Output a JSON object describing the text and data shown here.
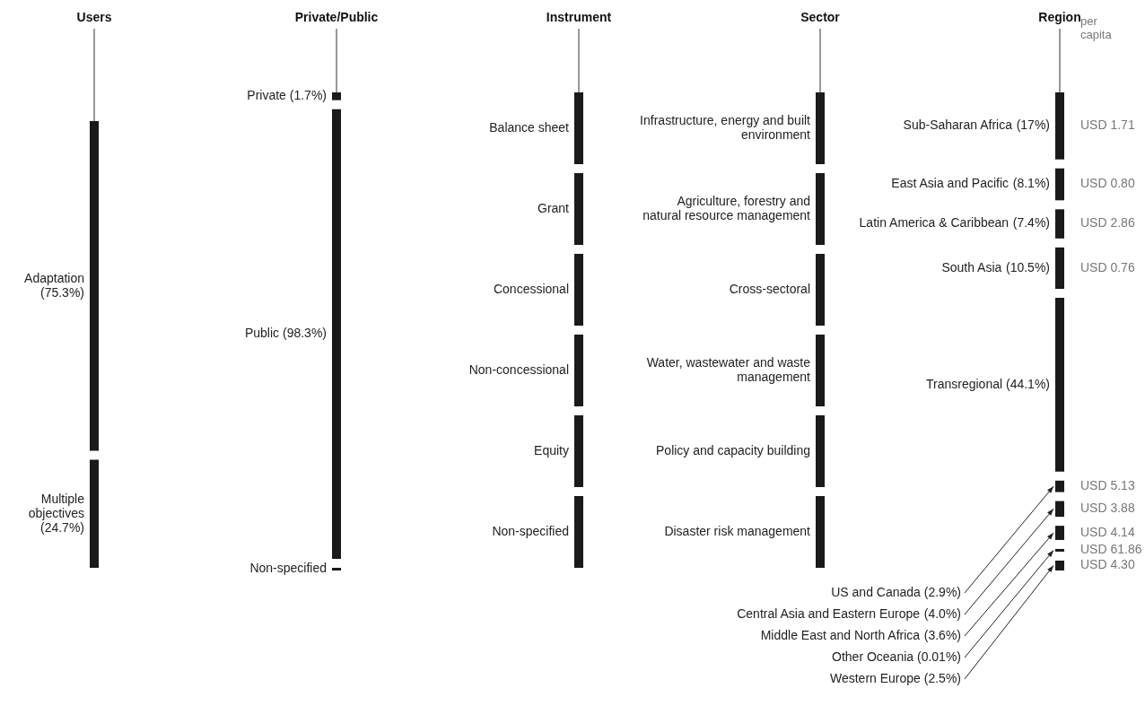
{
  "chart_data": [
    {
      "type": "other",
      "title": "Users",
      "categories": [
        "Adaptation",
        "Multiple objectives"
      ],
      "values": [
        75.3,
        24.7
      ],
      "value_labels": [
        "(75.3%)",
        "(24.7%)"
      ]
    },
    {
      "type": "other",
      "title": "Private/Public",
      "categories": [
        "Private",
        "Public",
        "Non-specified"
      ],
      "values": [
        1.7,
        98.3,
        null
      ],
      "value_labels": [
        "(1.7%)",
        "(98.3%)",
        null
      ]
    },
    {
      "type": "other",
      "title": "Instrument",
      "categories": [
        "Balance sheet",
        "Grant",
        "Concessional",
        "Non-concessional",
        "Equity",
        "Non-specified"
      ]
    },
    {
      "type": "other",
      "title": "Sector",
      "categories": [
        "Infrastructure, energy and built environment",
        "Agriculture, forestry and natural resource management",
        "Cross-sectoral",
        "Water, wastewater and waste management",
        "Policy and capacity building",
        "Disaster risk management"
      ]
    },
    {
      "type": "other",
      "title": "Region",
      "categories": [
        "Sub-Saharan Africa",
        "East Asia and Pacific",
        "Latin America & Caribbean",
        "South Asia",
        "Transregional",
        "US and Canada",
        "Central Asia and Eastern Europe",
        "Middle East and North Africa",
        "Other Oceania",
        "Western Europe"
      ],
      "values": [
        17,
        8.1,
        7.4,
        10.5,
        44.1,
        2.9,
        4.0,
        3.6,
        0.01,
        2.5
      ],
      "value_labels": [
        "(17%)",
        "(8.1%)",
        "(7.4%)",
        "(10.5%)",
        "(44.1%)",
        "(2.9%)",
        "(4.0%)",
        "(3.6%)",
        "(0.01%)",
        "(2.5%)"
      ],
      "annotations": [
        "per capita",
        {
          "text": "USD 1.71",
          "x": "Sub-Saharan Africa"
        },
        {
          "text": "USD 0.80",
          "x": "East Asia and Pacific"
        },
        {
          "text": "USD 2.86",
          "x": "Latin America & Caribbean"
        },
        {
          "text": "USD 0.76",
          "x": "South Asia"
        },
        {
          "text": "USD 5.13",
          "x": "US and Canada"
        },
        {
          "text": "USD 3.88",
          "x": "Central Asia and Eastern Europe"
        },
        {
          "text": "USD 4.14",
          "x": "Middle East and North Africa"
        },
        {
          "text": "USD 61.86",
          "x": "Other Oceania"
        },
        {
          "text": "USD 4.30",
          "x": "Western Europe"
        }
      ]
    }
  ]
}
